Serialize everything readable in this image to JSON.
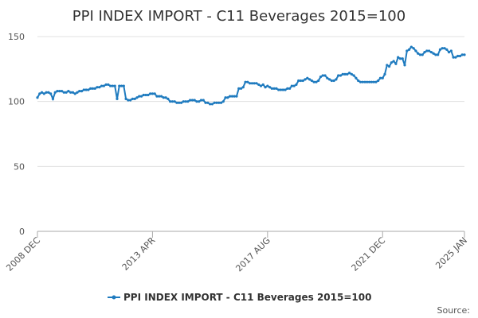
{
  "chart_data": {
    "type": "line",
    "title": "PPI INDEX IMPORT - C11 Beverages 2015=100",
    "source_label": "Source:",
    "legend_position": "bottom",
    "grid": true,
    "categories": [
      "2008 DEC",
      null,
      null,
      null,
      null,
      null,
      null,
      null,
      null,
      null,
      null,
      null,
      null,
      null,
      null,
      null,
      null,
      null,
      null,
      null,
      null,
      null,
      null,
      null,
      null,
      null,
      null,
      null,
      null,
      null,
      null,
      null,
      null,
      null,
      null,
      null,
      null,
      null,
      null,
      null,
      null,
      null,
      null,
      null,
      null,
      null,
      null,
      null,
      null,
      null,
      null,
      null,
      "2013 APR",
      null,
      null,
      null,
      null,
      null,
      null,
      null,
      null,
      null,
      null,
      null,
      null,
      null,
      null,
      null,
      null,
      null,
      null,
      null,
      null,
      null,
      null,
      null,
      null,
      null,
      null,
      null,
      null,
      null,
      null,
      null,
      null,
      null,
      null,
      null,
      null,
      null,
      null,
      null,
      null,
      null,
      null,
      null,
      null,
      null,
      null,
      null,
      null,
      null,
      null,
      null,
      "2017 AUG",
      null,
      null,
      null,
      null,
      null,
      null,
      null,
      null,
      null,
      null,
      null,
      null,
      null,
      null,
      null,
      null,
      null,
      null,
      null,
      null,
      null,
      null,
      null,
      null,
      null,
      null,
      null,
      null,
      null,
      null,
      null,
      null,
      null,
      null,
      null,
      null,
      null,
      null,
      null,
      null,
      null,
      null,
      null,
      null,
      null,
      null,
      null,
      null,
      null,
      null,
      null,
      "2021 DEC",
      null,
      null,
      null,
      null,
      null,
      null,
      null,
      null,
      null,
      null,
      null,
      null,
      null,
      null,
      null,
      null,
      null,
      null,
      null,
      null,
      null,
      null,
      null,
      null,
      null,
      null,
      null,
      null,
      null,
      null,
      null,
      null,
      null,
      null,
      null,
      null,
      "2025 JAN"
    ],
    "series": [
      {
        "name": "PPI INDEX IMPORT - C11 Beverages 2015=100",
        "color": "#1f7bbf",
        "values": [
          103,
          106,
          107,
          106,
          107,
          107,
          106,
          102,
          107,
          108,
          108,
          108,
          107,
          107,
          108,
          107,
          107,
          106,
          107,
          108,
          108,
          109,
          109,
          109,
          110,
          110,
          110,
          111,
          111,
          112,
          112,
          113,
          113,
          112,
          112,
          112,
          102,
          112,
          112,
          112,
          102,
          101,
          101,
          102,
          102,
          103,
          104,
          104,
          105,
          105,
          105,
          106,
          106,
          106,
          104,
          104,
          104,
          103,
          103,
          102,
          100,
          100,
          100,
          99,
          99,
          99,
          100,
          100,
          100,
          101,
          101,
          101,
          100,
          100,
          101,
          101,
          99,
          99,
          98,
          98,
          99,
          99,
          99,
          99,
          100,
          103,
          103,
          104,
          104,
          104,
          104,
          110,
          110,
          111,
          115,
          115,
          114,
          114,
          114,
          114,
          113,
          112,
          113,
          111,
          112,
          111,
          110,
          110,
          110,
          109,
          109,
          109,
          109,
          110,
          110,
          112,
          112,
          113,
          116,
          116,
          116,
          117,
          118,
          117,
          116,
          115,
          115,
          116,
          119,
          120,
          120,
          118,
          117,
          116,
          116,
          117,
          120,
          120,
          121,
          121,
          121,
          122,
          121,
          120,
          118,
          116,
          115,
          115,
          115,
          115,
          115,
          115,
          115,
          115,
          116,
          118,
          118,
          121,
          128,
          127,
          130,
          131,
          129,
          134,
          133,
          133,
          128,
          139,
          140,
          142,
          141,
          139,
          137,
          136,
          136,
          138,
          139,
          139,
          138,
          137,
          136,
          136,
          140,
          141,
          141,
          140,
          138,
          139,
          134,
          134,
          135,
          135,
          136,
          136
        ]
      }
    ],
    "ylim": [
      0,
      150
    ],
    "yticks": [
      0,
      50,
      100,
      150
    ]
  }
}
